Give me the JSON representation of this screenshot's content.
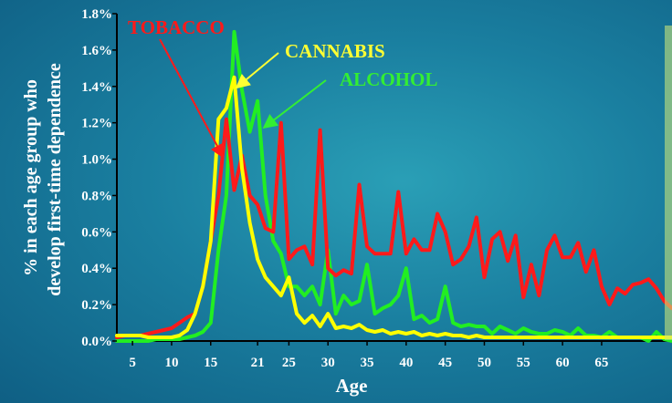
{
  "chart_data": {
    "type": "line",
    "title": "",
    "xlabel": "Age",
    "ylabel_lines": [
      "% in each age group who",
      "develop first-time dependence"
    ],
    "xlim": [
      3,
      74
    ],
    "ylim": [
      0,
      1.8
    ],
    "x_ticks": [
      5,
      10,
      15,
      21,
      25,
      30,
      35,
      40,
      45,
      50,
      55,
      60,
      65
    ],
    "y_ticks": [
      "0.0%",
      "0.2%",
      "0.4%",
      "0.6%",
      "0.8%",
      "1.0%",
      "1.2%",
      "1.4%",
      "1.6%",
      "1.8%"
    ],
    "grid": false,
    "series": [
      {
        "name": "TOBACCO",
        "color": "#ff1a1a",
        "label_color": "#ff1a1a",
        "x": [
          3,
          4,
          5,
          6,
          7,
          8,
          9,
          10,
          11,
          12,
          13,
          14,
          15,
          16,
          17,
          18,
          19,
          20,
          21,
          22,
          23,
          24,
          25,
          26,
          27,
          28,
          29,
          30,
          31,
          32,
          33,
          34,
          35,
          36,
          37,
          38,
          39,
          40,
          41,
          42,
          43,
          44,
          45,
          46,
          47,
          48,
          49,
          50,
          51,
          52,
          53,
          54,
          55,
          56,
          57,
          58,
          59,
          60,
          61,
          62,
          63,
          64,
          65,
          66,
          67,
          68,
          69,
          70,
          71,
          72,
          73,
          74
        ],
        "values": [
          0.02,
          0.03,
          0.03,
          0.03,
          0.04,
          0.05,
          0.06,
          0.07,
          0.1,
          0.13,
          0.15,
          0.3,
          0.55,
          0.8,
          1.22,
          0.83,
          1.02,
          0.8,
          0.75,
          0.62,
          0.6,
          1.2,
          0.45,
          0.5,
          0.52,
          0.42,
          1.16,
          0.4,
          0.36,
          0.39,
          0.37,
          0.86,
          0.52,
          0.48,
          0.48,
          0.48,
          0.82,
          0.48,
          0.56,
          0.5,
          0.5,
          0.7,
          0.6,
          0.42,
          0.45,
          0.52,
          0.68,
          0.35,
          0.56,
          0.6,
          0.44,
          0.58,
          0.24,
          0.42,
          0.25,
          0.5,
          0.58,
          0.46,
          0.46,
          0.54,
          0.38,
          0.5,
          0.3,
          0.2,
          0.29,
          0.26,
          0.31,
          0.32,
          0.34,
          0.29,
          0.22,
          0.18
        ]
      },
      {
        "name": "CANNABIS",
        "color": "#ffff00",
        "label_color": "#ffff33",
        "x": [
          3,
          4,
          5,
          6,
          7,
          8,
          9,
          10,
          11,
          12,
          13,
          14,
          15,
          16,
          17,
          18,
          19,
          20,
          21,
          22,
          23,
          24,
          25,
          26,
          27,
          28,
          29,
          30,
          31,
          32,
          33,
          34,
          35,
          36,
          37,
          38,
          39,
          40,
          41,
          42,
          43,
          44,
          45,
          46,
          47,
          48,
          49,
          50,
          51,
          52,
          53,
          54,
          55,
          56,
          57,
          58,
          59,
          60,
          61,
          62,
          63,
          64,
          65,
          66,
          67,
          68,
          69,
          70,
          71,
          72,
          73,
          74
        ],
        "values": [
          0.03,
          0.03,
          0.03,
          0.03,
          0.02,
          0.02,
          0.02,
          0.02,
          0.03,
          0.06,
          0.15,
          0.3,
          0.55,
          1.22,
          1.28,
          1.45,
          0.95,
          0.65,
          0.45,
          0.35,
          0.3,
          0.25,
          0.35,
          0.15,
          0.1,
          0.14,
          0.08,
          0.15,
          0.07,
          0.08,
          0.07,
          0.09,
          0.06,
          0.05,
          0.06,
          0.04,
          0.05,
          0.04,
          0.05,
          0.03,
          0.04,
          0.03,
          0.04,
          0.03,
          0.03,
          0.02,
          0.03,
          0.02,
          0.02,
          0.02,
          0.02,
          0.02,
          0.02,
          0.02,
          0.02,
          0.02,
          0.02,
          0.02,
          0.02,
          0.02,
          0.02,
          0.02,
          0.02,
          0.02,
          0.02,
          0.02,
          0.02,
          0.02,
          0.02,
          0.02,
          0.02,
          0.02
        ]
      },
      {
        "name": "ALCOHOL",
        "color": "#22ee22",
        "label_color": "#33ee33",
        "x": [
          3,
          4,
          5,
          6,
          7,
          8,
          9,
          10,
          11,
          12,
          13,
          14,
          15,
          16,
          17,
          18,
          19,
          20,
          21,
          22,
          23,
          24,
          25,
          26,
          27,
          28,
          29,
          30,
          31,
          32,
          33,
          34,
          35,
          36,
          37,
          38,
          39,
          40,
          41,
          42,
          43,
          44,
          45,
          46,
          47,
          48,
          49,
          50,
          51,
          52,
          53,
          54,
          55,
          56,
          57,
          58,
          59,
          60,
          61,
          62,
          63,
          64,
          65,
          66,
          67,
          68,
          69,
          70,
          71,
          72,
          73,
          74
        ],
        "values": [
          0.0,
          0.0,
          0.0,
          0.0,
          0.0,
          0.01,
          0.01,
          0.01,
          0.01,
          0.02,
          0.03,
          0.05,
          0.1,
          0.5,
          0.8,
          1.7,
          1.38,
          1.15,
          1.32,
          0.8,
          0.55,
          0.48,
          0.3,
          0.3,
          0.25,
          0.3,
          0.2,
          0.5,
          0.15,
          0.25,
          0.2,
          0.22,
          0.42,
          0.15,
          0.18,
          0.2,
          0.25,
          0.4,
          0.12,
          0.14,
          0.1,
          0.12,
          0.3,
          0.1,
          0.08,
          0.09,
          0.08,
          0.08,
          0.04,
          0.08,
          0.06,
          0.04,
          0.07,
          0.05,
          0.04,
          0.04,
          0.06,
          0.05,
          0.03,
          0.07,
          0.03,
          0.03,
          0.02,
          0.05,
          0.02,
          0.02,
          0.02,
          0.02,
          0.0,
          0.05,
          0.01,
          0.0
        ]
      }
    ],
    "annotations": [
      {
        "series": "TOBACCO",
        "text": "TOBACCO",
        "arrow_to": [
          16.5,
          1.02
        ]
      },
      {
        "series": "CANNABIS",
        "text": "CANNABIS",
        "arrow_to": [
          18.5,
          1.4
        ]
      },
      {
        "series": "ALCOHOL",
        "text": "ALCOHOL",
        "arrow_to": [
          22,
          1.18
        ]
      }
    ]
  }
}
